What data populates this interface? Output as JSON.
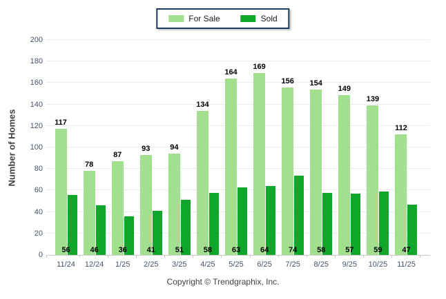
{
  "chart_data": {
    "type": "bar",
    "categories": [
      "11/24",
      "12/24",
      "1/25",
      "2/25",
      "3/25",
      "4/25",
      "5/25",
      "6/25",
      "7/25",
      "8/25",
      "9/25",
      "10/25",
      "11/25"
    ],
    "series": [
      {
        "name": "For Sale",
        "color": "#a2df8e",
        "values": [
          117,
          78,
          87,
          93,
          94,
          134,
          164,
          169,
          156,
          154,
          149,
          139,
          112
        ]
      },
      {
        "name": "Sold",
        "color": "#10a52b",
        "values": [
          56,
          46,
          36,
          41,
          51,
          58,
          63,
          64,
          74,
          58,
          57,
          59,
          47
        ]
      }
    ],
    "title": "",
    "xlabel": "",
    "ylabel": "Number of Homes",
    "ylim": [
      0,
      200
    ],
    "ytick_step": 20,
    "grid": "horizontal",
    "legend_position": "top-center",
    "value_label_style": "For Sale values above bars, Sold values at bar base",
    "colors": {
      "legend_border": "#1e3a5f",
      "gridline": "#ececec",
      "axis_line": "#c9c9c9",
      "tick_label": "#44546a",
      "value_label": "#000000"
    }
  },
  "footer": {
    "copyright_text": "Copyright © Trendgraphix, Inc."
  }
}
